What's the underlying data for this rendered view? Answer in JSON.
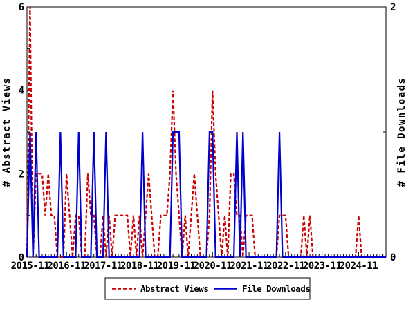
{
  "page": {
    "background": "#ffffff"
  },
  "chart_data": {
    "type": "line",
    "title": "",
    "x_domain": {
      "start": "2015-10",
      "end": "2025-08",
      "unit": "month"
    },
    "x_tick_labels": [
      "2015-11",
      "2016-11",
      "2017-11",
      "2018-11",
      "2019-11",
      "2020-11",
      "2021-11",
      "2022-11",
      "2023-11",
      "2024-11"
    ],
    "left_axis": {
      "label": "# Abstract Views",
      "range": [
        0,
        6
      ],
      "major_ticks": [
        0,
        2,
        4,
        6
      ],
      "minor_ticks": [
        1,
        3,
        5
      ],
      "tick_labels": [
        "0",
        "2",
        "4",
        "6"
      ]
    },
    "right_axis": {
      "label": "# File Downloads",
      "range": [
        0,
        2
      ],
      "major_ticks": [
        0,
        2
      ],
      "minor_ticks": [
        1
      ],
      "tick_labels": [
        "0",
        "2"
      ]
    },
    "grid": false,
    "legend": {
      "position": "bottom-center",
      "border": true
    },
    "series": [
      {
        "name": "Abstract Views",
        "color": "#cc0000",
        "line_style": "dashed",
        "axis": "left",
        "default_value": 0,
        "points": {
          "2015-11": 6,
          "2016-01": 2,
          "2016-02": 2,
          "2016-03": 2,
          "2016-04": 1,
          "2016-05": 2,
          "2016-06": 1,
          "2016-07": 1,
          "2016-11": 2,
          "2016-12": 1,
          "2017-02": 1,
          "2017-03": 1,
          "2017-06": 2,
          "2017-07": 1,
          "2017-08": 1,
          "2017-11": 1,
          "2018-01": 1,
          "2018-03": 1,
          "2018-04": 1,
          "2018-05": 1,
          "2018-06": 1,
          "2018-07": 1,
          "2018-09": 1,
          "2018-11": 1,
          "2019-01": 1,
          "2019-02": 2,
          "2019-03": 1,
          "2019-06": 1,
          "2019-07": 1,
          "2019-08": 1,
          "2019-09": 2,
          "2019-10": 4,
          "2019-11": 2,
          "2019-12": 1,
          "2020-02": 1,
          "2020-04": 1,
          "2020-05": 2,
          "2020-06": 1,
          "2020-10": 1,
          "2020-11": 4,
          "2020-12": 2,
          "2021-01": 1,
          "2021-03": 1,
          "2021-05": 2,
          "2021-06": 2,
          "2021-07": 1,
          "2021-08": 1,
          "2021-10": 1,
          "2021-11": 1,
          "2021-12": 1,
          "2022-09": 1,
          "2022-10": 1,
          "2022-11": 1,
          "2023-05": 1,
          "2023-07": 1,
          "2024-11": 1
        }
      },
      {
        "name": "File Downloads",
        "color": "#0000cc",
        "line_style": "solid",
        "axis": "right",
        "default_value": 0,
        "points": {
          "2015-11": 1,
          "2016-01": 1,
          "2016-09": 1,
          "2017-03": 1,
          "2017-08": 1,
          "2017-12": 1,
          "2018-12": 1,
          "2019-10": 1,
          "2019-11": 1,
          "2019-12": 1,
          "2020-10": 1,
          "2020-11": 1,
          "2021-07": 1,
          "2021-09": 1,
          "2022-09": 1
        }
      }
    ]
  }
}
